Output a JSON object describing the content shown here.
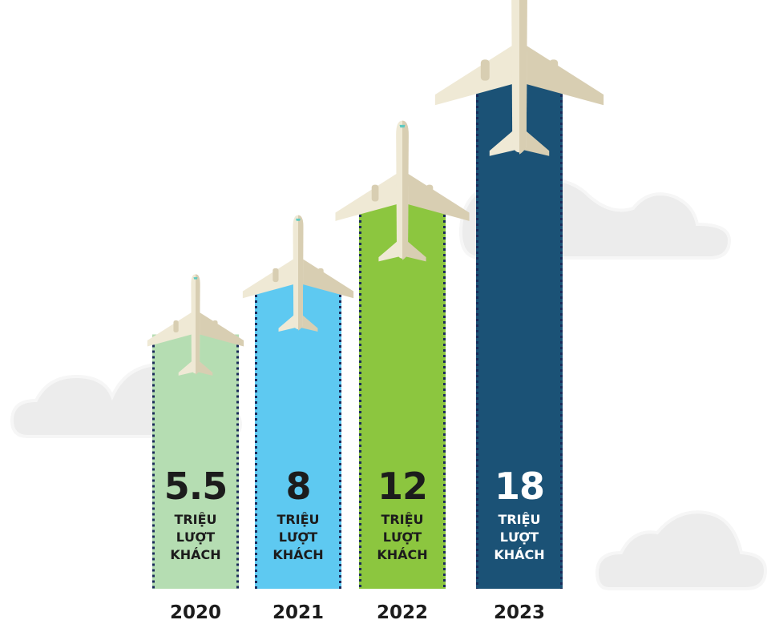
{
  "chart_data": {
    "type": "bar",
    "categories": [
      "2020",
      "2021",
      "2022",
      "2023"
    ],
    "values": [
      5.5,
      8,
      12,
      18
    ],
    "unit_label": "TRIỆU LƯỢT KHÁCH",
    "colors": [
      "#b5ddb2",
      "#5ec9f1",
      "#8cc63f",
      "#1b5276"
    ],
    "label_colors": [
      "#1c1c1c",
      "#1c1c1c",
      "#1c1c1c",
      "#ffffff"
    ]
  }
}
